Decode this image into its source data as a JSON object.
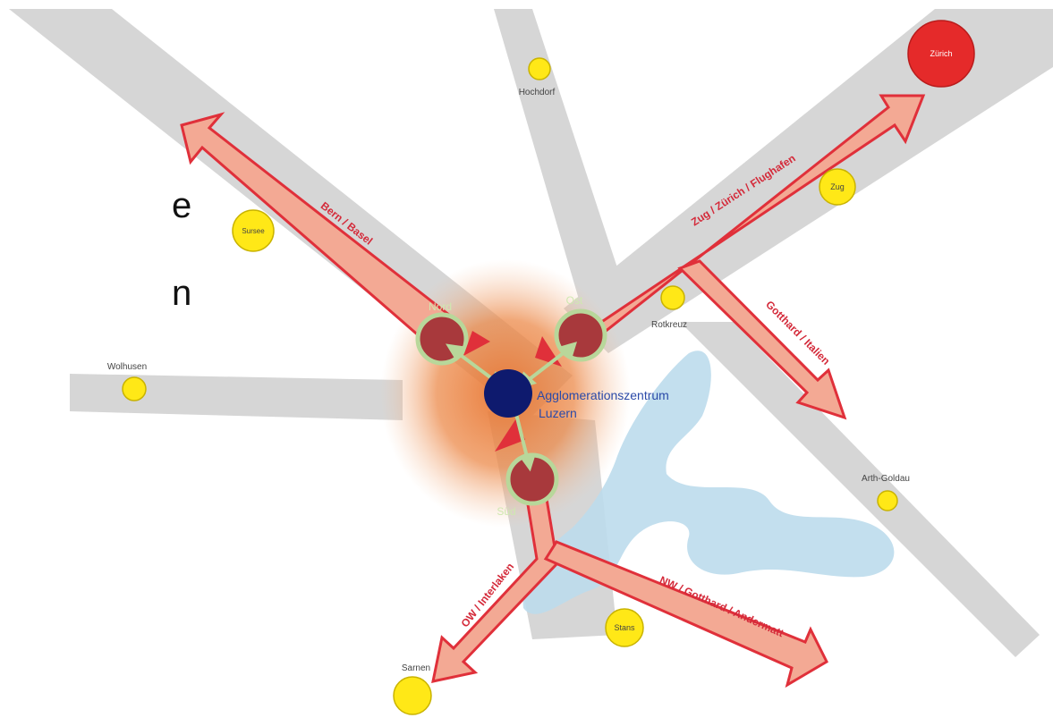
{
  "side_text": [
    "e",
    "n"
  ],
  "cities": {
    "zurich": "Zürich",
    "hochdorf": "Hochdorf",
    "zug": "Zug",
    "sursee": "Sursee",
    "rotkreuz": "Rotkreuz",
    "wolhusen": "Wolhusen",
    "arth_goldau": "Arth-Goldau",
    "stans": "Stans",
    "sarnen": "Sarnen"
  },
  "nodes": {
    "nord": "Nord",
    "ost": "Ost",
    "sud": "Süd"
  },
  "center": {
    "line1": "Agglomerationszentrum",
    "line2": "Luzern"
  },
  "corridors": {
    "bern_basel": "Bern / Basel",
    "zug_zurich": "Zug / Zürich / Flughafen",
    "gotthard_italien": "Gotthard / Italien",
    "ow_interlaken": "OW / Interlaken",
    "nw_gotthard": "NW / Gotthard / Andermatt"
  },
  "colors": {
    "corridor_band": "#d6d6d6",
    "corridor_arrow_fill": "#f3a994",
    "corridor_arrow_stroke": "#e0303a",
    "label_red": "#d42a3a",
    "city_yellow": "#ffe817",
    "zurich_red": "#e52a2a",
    "center_navy": "#0e1a6e",
    "center_text": "#2b4aa8",
    "node_ring": "#b8d79a",
    "node_fill": "#a8393c",
    "glow": "#ec8a4a",
    "lake": "#bcdcec"
  }
}
